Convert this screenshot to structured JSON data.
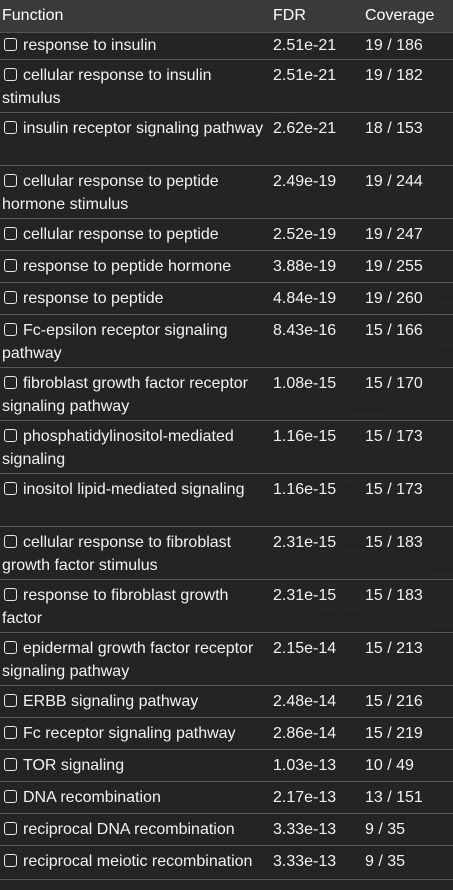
{
  "header": {
    "function": "Function",
    "fdr": "FDR",
    "coverage": "Coverage"
  },
  "rows": [
    {
      "function": "response to insulin",
      "fdr": "2.51e-21",
      "coverage": "19 / 186"
    },
    {
      "function": "cellular response to insulin stimulus",
      "fdr": "2.51e-21",
      "coverage": "19 / 182"
    },
    {
      "function": "insulin receptor signaling pathway",
      "fdr": "2.62e-21",
      "coverage": "18 / 153"
    },
    {
      "function": "cellular response to peptide hormone stimulus",
      "fdr": "2.49e-19",
      "coverage": "19 / 244"
    },
    {
      "function": "cellular response to peptide",
      "fdr": "2.52e-19",
      "coverage": "19 / 247"
    },
    {
      "function": "response to peptide hormone",
      "fdr": "3.88e-19",
      "coverage": "19 / 255"
    },
    {
      "function": "response to peptide",
      "fdr": "4.84e-19",
      "coverage": "19 / 260"
    },
    {
      "function": "Fc-epsilon receptor signaling pathway",
      "fdr": "8.43e-16",
      "coverage": "15 / 166"
    },
    {
      "function": "fibroblast growth factor receptor signaling pathway",
      "fdr": "1.08e-15",
      "coverage": "15 / 170"
    },
    {
      "function": "phosphatidylinositol-mediated signaling",
      "fdr": "1.16e-15",
      "coverage": "15 / 173"
    },
    {
      "function": "inositol lipid-mediated signaling",
      "fdr": "1.16e-15",
      "coverage": "15 / 173"
    },
    {
      "function": "cellular response to fibroblast growth factor stimulus",
      "fdr": "2.31e-15",
      "coverage": "15 / 183"
    },
    {
      "function": "response to fibroblast growth factor",
      "fdr": "2.31e-15",
      "coverage": "15 / 183"
    },
    {
      "function": "epidermal growth factor receptor signaling pathway",
      "fdr": "2.15e-14",
      "coverage": "15 / 213"
    },
    {
      "function": "ERBB signaling pathway",
      "fdr": "2.48e-14",
      "coverage": "15 / 216"
    },
    {
      "function": "Fc receptor signaling pathway",
      "fdr": "2.86e-14",
      "coverage": "15 / 219"
    },
    {
      "function": "TOR signaling",
      "fdr": "1.03e-13",
      "coverage": "10 / 49"
    },
    {
      "function": "DNA recombination",
      "fdr": "2.17e-13",
      "coverage": "13 / 151"
    },
    {
      "function": "reciprocal DNA recombination",
      "fdr": "3.33e-13",
      "coverage": "9 / 35"
    },
    {
      "function": "reciprocal meiotic recombination",
      "fdr": "3.33e-13",
      "coverage": "9 / 35"
    }
  ]
}
